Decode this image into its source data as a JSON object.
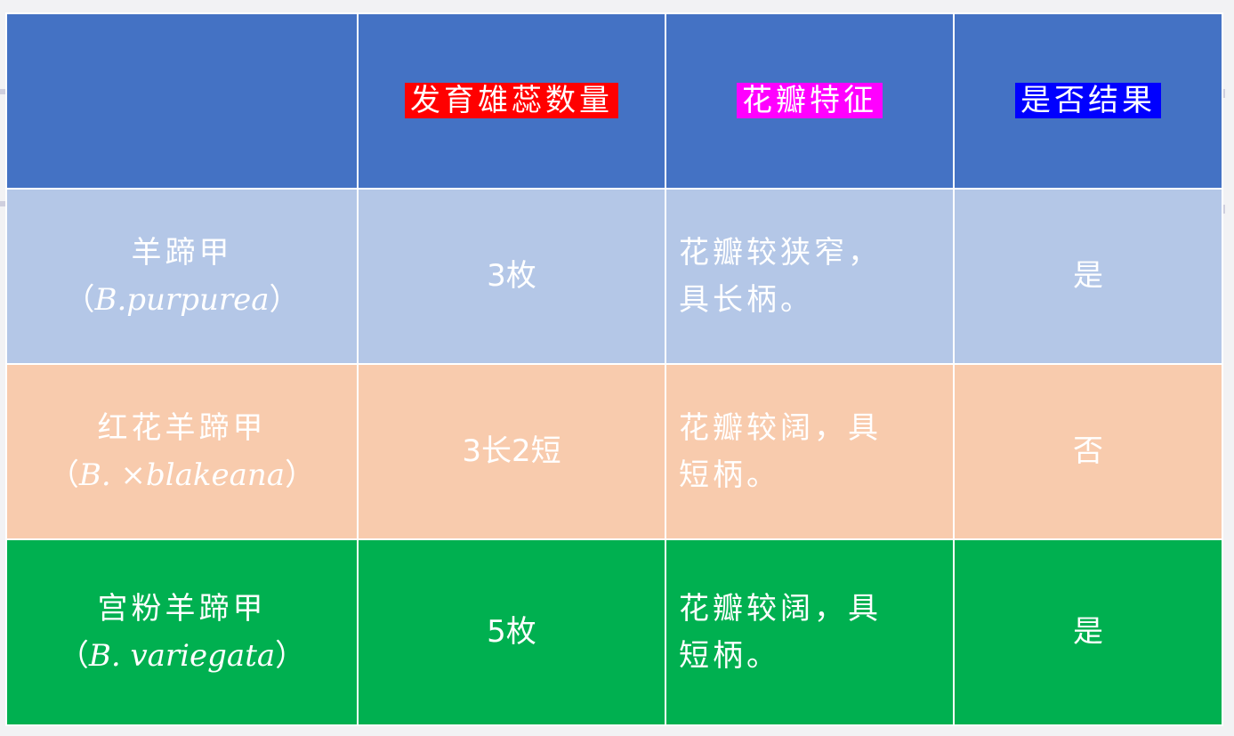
{
  "headers": [
    {
      "label": "",
      "highlight": ""
    },
    {
      "label": "发育雄蕊数量",
      "highlight": "#ff0000"
    },
    {
      "label": "花瓣特征",
      "highlight": "#ff00ff"
    },
    {
      "label": "是否结果",
      "highlight": "#0000ff"
    }
  ],
  "rows": [
    {
      "name_cn": "羊蹄甲",
      "name_latin": "B.purpurea",
      "stamens": "3枚",
      "petals_1": "花瓣较狭窄，",
      "petals_2": "具长柄。",
      "fruit": "是",
      "color": "#b4c7e7"
    },
    {
      "name_cn": "红花羊蹄甲",
      "name_latin": "B. ×blakeana",
      "stamens": "3长2短",
      "petals_1": "花瓣较阔，具",
      "petals_2": "短柄。",
      "fruit": "否",
      "color": "#f8cbad"
    },
    {
      "name_cn": "宫粉羊蹄甲",
      "name_latin": "B. variegata",
      "stamens": "5枚",
      "petals_1": "花瓣较阔，具",
      "petals_2": "短柄。",
      "fruit": "是",
      "color": "#00b050"
    }
  ],
  "colors": {
    "header": "#4472c4"
  },
  "paren_open": "（",
  "paren_close": "）"
}
